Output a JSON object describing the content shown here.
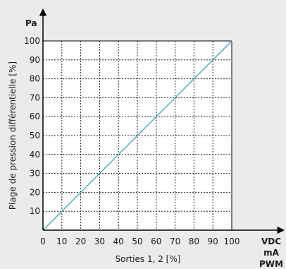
{
  "chart_data": {
    "type": "line",
    "xlabel": "Sorties 1, 2 [%]",
    "ylabel": "Plage de pression différentielle  [%]",
    "y_unit": "Pa",
    "x_units": [
      "VDC",
      "mA",
      "PWM"
    ],
    "x_ticks": [
      "0",
      "10",
      "20",
      "30",
      "40",
      "50",
      "60",
      "70",
      "80",
      "90",
      "100"
    ],
    "y_ticks": [
      "10",
      "20",
      "30",
      "40",
      "50",
      "60",
      "70",
      "80",
      "90",
      "100"
    ],
    "xlim": [
      0,
      100
    ],
    "ylim": [
      0,
      100
    ],
    "grid": true,
    "series": [
      {
        "x": [
          0,
          100
        ],
        "y": [
          0,
          100
        ],
        "color": "#3d9dc7"
      }
    ]
  }
}
